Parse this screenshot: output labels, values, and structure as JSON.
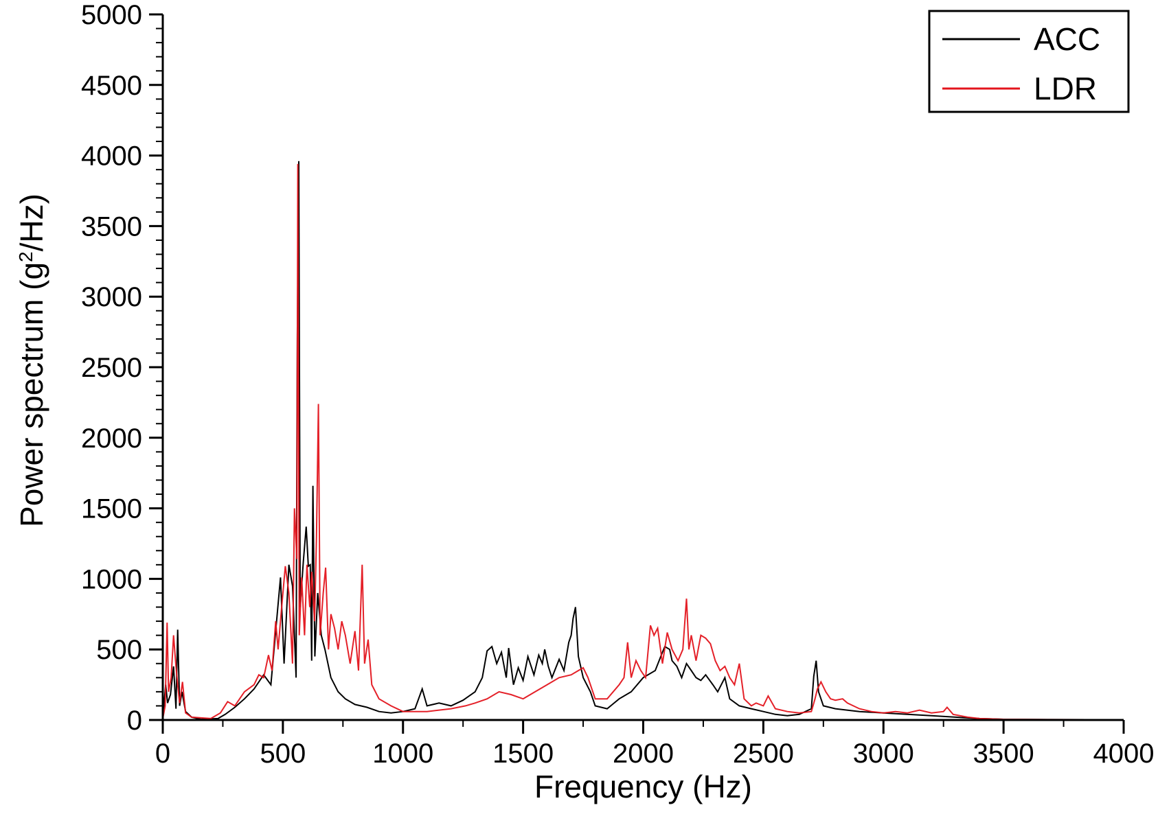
{
  "chart_data": {
    "type": "line",
    "title": "",
    "xlabel": "Frequency (Hz)",
    "ylabel": {
      "main": "Power spectrum (g",
      "superscript": "2",
      "tail": "/Hz)"
    },
    "xlim": [
      0,
      4000
    ],
    "ylim": [
      0,
      5000
    ],
    "x_ticks": [
      "0",
      "500",
      "1000",
      "1500",
      "2000",
      "2500",
      "3000",
      "3500",
      "4000"
    ],
    "y_ticks": [
      "0",
      "500",
      "1000",
      "1500",
      "2000",
      "2500",
      "3000",
      "3500",
      "4000",
      "4500",
      "5000"
    ],
    "grid": false,
    "legend_position": "top-right",
    "series": [
      {
        "name": "ACC",
        "color": "#000000",
        "points": [
          [
            0,
            10
          ],
          [
            12,
            250
          ],
          [
            20,
            120
          ],
          [
            32,
            180
          ],
          [
            45,
            380
          ],
          [
            55,
            80
          ],
          [
            62,
            640
          ],
          [
            70,
            100
          ],
          [
            80,
            200
          ],
          [
            95,
            60
          ],
          [
            120,
            20
          ],
          [
            160,
            5
          ],
          [
            230,
            10
          ],
          [
            260,
            40
          ],
          [
            300,
            90
          ],
          [
            340,
            150
          ],
          [
            380,
            220
          ],
          [
            420,
            320
          ],
          [
            450,
            250
          ],
          [
            490,
            1010
          ],
          [
            505,
            400
          ],
          [
            525,
            1100
          ],
          [
            540,
            950
          ],
          [
            555,
            300
          ],
          [
            560,
            2730
          ],
          [
            566,
            3960
          ],
          [
            572,
            800
          ],
          [
            585,
            1120
          ],
          [
            597,
            1370
          ],
          [
            606,
            1090
          ],
          [
            614,
            1100
          ],
          [
            620,
            420
          ],
          [
            625,
            1660
          ],
          [
            633,
            450
          ],
          [
            645,
            900
          ],
          [
            660,
            600
          ],
          [
            675,
            500
          ],
          [
            700,
            300
          ],
          [
            730,
            200
          ],
          [
            760,
            150
          ],
          [
            800,
            110
          ],
          [
            850,
            90
          ],
          [
            900,
            60
          ],
          [
            950,
            50
          ],
          [
            1000,
            60
          ],
          [
            1050,
            80
          ],
          [
            1080,
            220
          ],
          [
            1100,
            100
          ],
          [
            1150,
            120
          ],
          [
            1200,
            100
          ],
          [
            1250,
            140
          ],
          [
            1300,
            200
          ],
          [
            1330,
            300
          ],
          [
            1350,
            490
          ],
          [
            1370,
            520
          ],
          [
            1390,
            400
          ],
          [
            1410,
            480
          ],
          [
            1430,
            300
          ],
          [
            1440,
            510
          ],
          [
            1460,
            250
          ],
          [
            1480,
            370
          ],
          [
            1500,
            280
          ],
          [
            1520,
            450
          ],
          [
            1545,
            320
          ],
          [
            1565,
            460
          ],
          [
            1580,
            400
          ],
          [
            1590,
            500
          ],
          [
            1605,
            380
          ],
          [
            1620,
            300
          ],
          [
            1650,
            430
          ],
          [
            1670,
            350
          ],
          [
            1690,
            550
          ],
          [
            1700,
            600
          ],
          [
            1708,
            720
          ],
          [
            1718,
            800
          ],
          [
            1730,
            450
          ],
          [
            1750,
            300
          ],
          [
            1780,
            200
          ],
          [
            1800,
            100
          ],
          [
            1850,
            80
          ],
          [
            1900,
            150
          ],
          [
            1950,
            200
          ],
          [
            2000,
            300
          ],
          [
            2050,
            350
          ],
          [
            2080,
            480
          ],
          [
            2090,
            520
          ],
          [
            2100,
            510
          ],
          [
            2110,
            500
          ],
          [
            2120,
            420
          ],
          [
            2140,
            380
          ],
          [
            2160,
            300
          ],
          [
            2180,
            400
          ],
          [
            2200,
            350
          ],
          [
            2220,
            300
          ],
          [
            2240,
            280
          ],
          [
            2260,
            320
          ],
          [
            2290,
            250
          ],
          [
            2310,
            200
          ],
          [
            2340,
            300
          ],
          [
            2360,
            150
          ],
          [
            2400,
            100
          ],
          [
            2450,
            80
          ],
          [
            2500,
            60
          ],
          [
            2550,
            40
          ],
          [
            2600,
            30
          ],
          [
            2650,
            40
          ],
          [
            2700,
            80
          ],
          [
            2710,
            310
          ],
          [
            2720,
            420
          ],
          [
            2730,
            200
          ],
          [
            2750,
            100
          ],
          [
            2800,
            80
          ],
          [
            2900,
            60
          ],
          [
            3000,
            50
          ],
          [
            3100,
            40
          ],
          [
            3200,
            30
          ],
          [
            3300,
            20
          ],
          [
            3400,
            10
          ],
          [
            3500,
            5
          ],
          [
            3700,
            3
          ],
          [
            4000,
            2
          ]
        ]
      },
      {
        "name": "LDR",
        "color": "#e3141c",
        "points": [
          [
            0,
            10
          ],
          [
            10,
            100
          ],
          [
            18,
            690
          ],
          [
            24,
            200
          ],
          [
            35,
            300
          ],
          [
            45,
            600
          ],
          [
            55,
            380
          ],
          [
            62,
            250
          ],
          [
            70,
            120
          ],
          [
            82,
            270
          ],
          [
            95,
            50
          ],
          [
            120,
            20
          ],
          [
            200,
            10
          ],
          [
            240,
            50
          ],
          [
            270,
            130
          ],
          [
            300,
            100
          ],
          [
            340,
            200
          ],
          [
            380,
            250
          ],
          [
            400,
            320
          ],
          [
            420,
            300
          ],
          [
            430,
            380
          ],
          [
            440,
            460
          ],
          [
            455,
            350
          ],
          [
            470,
            700
          ],
          [
            480,
            500
          ],
          [
            495,
            800
          ],
          [
            510,
            1090
          ],
          [
            525,
            900
          ],
          [
            540,
            400
          ],
          [
            548,
            1500
          ],
          [
            558,
            1140
          ],
          [
            562,
            3940
          ],
          [
            568,
            600
          ],
          [
            578,
            1010
          ],
          [
            590,
            600
          ],
          [
            600,
            1100
          ],
          [
            612,
            800
          ],
          [
            620,
            1050
          ],
          [
            632,
            700
          ],
          [
            640,
            1300
          ],
          [
            648,
            2240
          ],
          [
            655,
            600
          ],
          [
            668,
            900
          ],
          [
            678,
            1080
          ],
          [
            690,
            500
          ],
          [
            700,
            750
          ],
          [
            715,
            650
          ],
          [
            730,
            500
          ],
          [
            745,
            700
          ],
          [
            760,
            600
          ],
          [
            780,
            400
          ],
          [
            800,
            630
          ],
          [
            815,
            350
          ],
          [
            830,
            1100
          ],
          [
            840,
            400
          ],
          [
            855,
            570
          ],
          [
            870,
            250
          ],
          [
            900,
            150
          ],
          [
            950,
            100
          ],
          [
            1000,
            60
          ],
          [
            1100,
            60
          ],
          [
            1200,
            80
          ],
          [
            1260,
            100
          ],
          [
            1300,
            120
          ],
          [
            1350,
            150
          ],
          [
            1400,
            200
          ],
          [
            1450,
            180
          ],
          [
            1500,
            150
          ],
          [
            1550,
            200
          ],
          [
            1600,
            250
          ],
          [
            1650,
            300
          ],
          [
            1700,
            320
          ],
          [
            1730,
            350
          ],
          [
            1750,
            370
          ],
          [
            1770,
            300
          ],
          [
            1800,
            150
          ],
          [
            1850,
            150
          ],
          [
            1900,
            250
          ],
          [
            1920,
            300
          ],
          [
            1935,
            550
          ],
          [
            1950,
            300
          ],
          [
            1970,
            420
          ],
          [
            1990,
            350
          ],
          [
            2010,
            300
          ],
          [
            2030,
            670
          ],
          [
            2045,
            600
          ],
          [
            2060,
            650
          ],
          [
            2080,
            400
          ],
          [
            2100,
            620
          ],
          [
            2120,
            500
          ],
          [
            2145,
            420
          ],
          [
            2165,
            500
          ],
          [
            2180,
            860
          ],
          [
            2190,
            500
          ],
          [
            2200,
            600
          ],
          [
            2220,
            420
          ],
          [
            2240,
            600
          ],
          [
            2260,
            580
          ],
          [
            2280,
            540
          ],
          [
            2300,
            420
          ],
          [
            2320,
            350
          ],
          [
            2340,
            380
          ],
          [
            2360,
            300
          ],
          [
            2380,
            250
          ],
          [
            2400,
            400
          ],
          [
            2420,
            150
          ],
          [
            2450,
            100
          ],
          [
            2470,
            120
          ],
          [
            2500,
            100
          ],
          [
            2520,
            170
          ],
          [
            2550,
            80
          ],
          [
            2600,
            60
          ],
          [
            2650,
            50
          ],
          [
            2700,
            60
          ],
          [
            2715,
            150
          ],
          [
            2725,
            220
          ],
          [
            2740,
            270
          ],
          [
            2760,
            200
          ],
          [
            2780,
            150
          ],
          [
            2800,
            140
          ],
          [
            2830,
            150
          ],
          [
            2850,
            120
          ],
          [
            2900,
            80
          ],
          [
            2950,
            60
          ],
          [
            3000,
            50
          ],
          [
            3050,
            60
          ],
          [
            3100,
            50
          ],
          [
            3150,
            70
          ],
          [
            3200,
            50
          ],
          [
            3250,
            60
          ],
          [
            3265,
            90
          ],
          [
            3290,
            40
          ],
          [
            3350,
            20
          ],
          [
            3400,
            10
          ],
          [
            3500,
            5
          ],
          [
            3700,
            3
          ],
          [
            4000,
            2
          ]
        ]
      }
    ]
  }
}
